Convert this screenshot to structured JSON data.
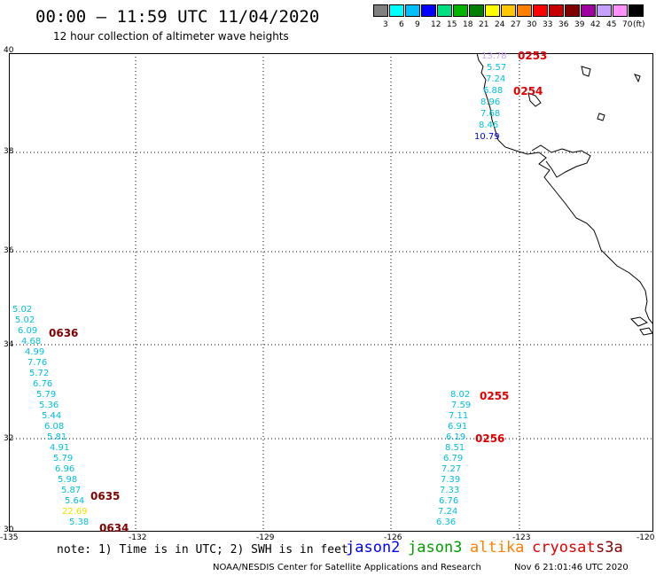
{
  "header": {
    "title": "00:00 – 11:59 UTC 11/04/2020",
    "subtitle": "12 hour collection of altimeter wave heights"
  },
  "colorbar": {
    "colors": [
      "#808080",
      "#00ffff",
      "#00bfff",
      "#0000ff",
      "#00e080",
      "#00b400",
      "#008000",
      "#ffff00",
      "#ffc800",
      "#ff8000",
      "#ff0000",
      "#c80000",
      "#800000",
      "#a000a0",
      "#c8a0ff",
      "#ff90ff",
      "#000000"
    ],
    "labels": [
      "3",
      "6",
      "9",
      "12",
      "15",
      "18",
      "21",
      "24",
      "27",
      "30",
      "33",
      "36",
      "39",
      "42",
      "45",
      "70",
      "(ft)"
    ]
  },
  "map": {
    "lat_labels": [
      "40",
      "38",
      "36",
      "34",
      "32",
      "30"
    ],
    "lon_labels": [
      "-135",
      "-132",
      "-129",
      "-126",
      "-123",
      "-120"
    ],
    "series": [
      {
        "name": "track-1",
        "values": [
          {
            "text": "13.78",
            "color": "#c8a0ff"
          },
          {
            "text": "5.57",
            "color": "#00bfd8"
          },
          {
            "text": "7.24",
            "color": "#00bfd8"
          },
          {
            "text": "6.88",
            "color": "#00bfd8"
          },
          {
            "text": "8.96",
            "color": "#00bfd8"
          },
          {
            "text": "7.68",
            "color": "#00bfd8"
          },
          {
            "text": "8.46",
            "color": "#00bfd8"
          },
          {
            "text": "10.79",
            "color": "#0000e0"
          }
        ],
        "times": [
          "0253",
          "0254"
        ]
      },
      {
        "name": "track-2",
        "values": [
          {
            "text": "5.02",
            "color": "#00bfd8"
          },
          {
            "text": "5.02",
            "color": "#00bfd8"
          },
          {
            "text": "6.09",
            "color": "#00bfd8"
          },
          {
            "text": "4.68",
            "color": "#00bfd8"
          },
          {
            "text": "4.99",
            "color": "#00bfd8"
          },
          {
            "text": "7.76",
            "color": "#00bfd8"
          },
          {
            "text": "5.72",
            "color": "#00bfd8"
          },
          {
            "text": "6.76",
            "color": "#00bfd8"
          },
          {
            "text": "5.79",
            "color": "#00bfd8"
          },
          {
            "text": "5.36",
            "color": "#00bfd8"
          },
          {
            "text": "5.44",
            "color": "#00bfd8"
          },
          {
            "text": "6.08",
            "color": "#00bfd8"
          },
          {
            "text": "5.81",
            "color": "#00bfd8"
          },
          {
            "text": "4.91",
            "color": "#00bfd8"
          },
          {
            "text": "5.79",
            "color": "#00bfd8"
          },
          {
            "text": "6.96",
            "color": "#00bfd8"
          },
          {
            "text": "5.98",
            "color": "#00bfd8"
          },
          {
            "text": "5.87",
            "color": "#00bfd8"
          },
          {
            "text": "5.64",
            "color": "#00bfd8"
          },
          {
            "text": "22.69",
            "color": "#f0e000"
          },
          {
            "text": "5.38",
            "color": "#00bfd8"
          }
        ],
        "times": [
          "0636",
          "0635",
          "0634"
        ]
      },
      {
        "name": "track-3",
        "values": [
          {
            "text": "8.02",
            "color": "#00bfd8"
          },
          {
            "text": "7.59",
            "color": "#00bfd8"
          },
          {
            "text": "7.11",
            "color": "#00bfd8"
          },
          {
            "text": "6.91",
            "color": "#00bfd8"
          },
          {
            "text": "6.19",
            "color": "#00bfd8"
          },
          {
            "text": "8.51",
            "color": "#00bfd8"
          },
          {
            "text": "6.79",
            "color": "#00bfd8"
          },
          {
            "text": "7.27",
            "color": "#00bfd8"
          },
          {
            "text": "7.39",
            "color": "#00bfd8"
          },
          {
            "text": "7.33",
            "color": "#00bfd8"
          },
          {
            "text": "6.76",
            "color": "#00bfd8"
          },
          {
            "text": "7.24",
            "color": "#00bfd8"
          },
          {
            "text": "6.36",
            "color": "#00bfd8"
          }
        ],
        "times": [
          "0255",
          "0256"
        ]
      }
    ]
  },
  "footer": {
    "note": "note: 1) Time is in UTC; 2) SWH is in feet",
    "legend": [
      {
        "text": "jason2",
        "color": "#0000ff"
      },
      {
        "text": "jason3",
        "color": "#00a000"
      },
      {
        "text": "altika",
        "color": "#ff8000"
      },
      {
        "text": "cryosat",
        "color": "#e00000"
      },
      {
        "text": "s3a",
        "color": "#800000"
      }
    ],
    "credit": "NOAA/NESDIS Center for Satellite Applications and Research",
    "timestamp": "Nov  6 21:01:46 UTC 2020"
  }
}
